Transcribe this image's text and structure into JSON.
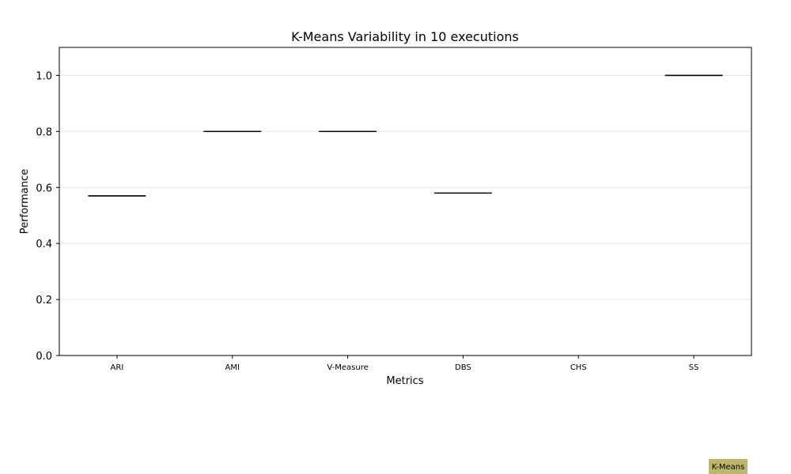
{
  "chart_data": {
    "type": "box",
    "title": "K-Means Variability in 10 executions",
    "xlabel": "Metrics",
    "ylabel": "Performance",
    "ylim": [
      0.0,
      1.1
    ],
    "yticks": [
      0.0,
      0.2,
      0.4,
      0.6,
      0.8,
      1.0
    ],
    "ytick_labels": [
      "0.0",
      "0.2",
      "0.4",
      "0.6",
      "0.8",
      "1.0"
    ],
    "categories": [
      "ARI",
      "AMI",
      "V-Measure",
      "DBS",
      "CHS",
      "SS"
    ],
    "series": [
      {
        "name": "K-Means",
        "color": "#bdb76b",
        "values": [
          0.57,
          0.8,
          0.8,
          0.58,
          null,
          1.0
        ]
      }
    ],
    "grid": "horizontal",
    "legend": {
      "position": "bottom-right",
      "label": "K-Means"
    }
  }
}
